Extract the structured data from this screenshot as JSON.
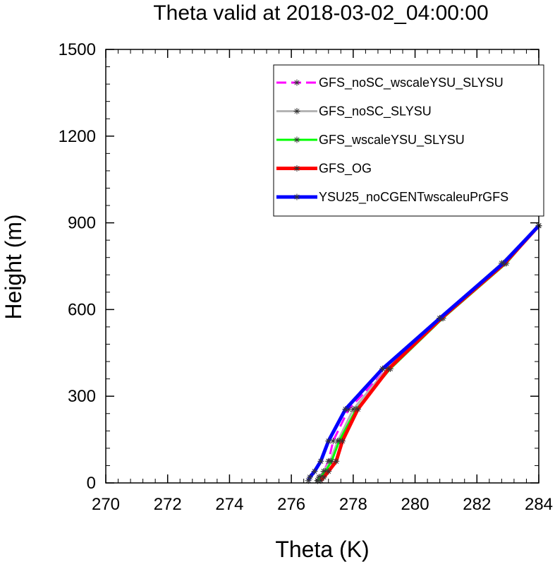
{
  "chart_data": {
    "type": "line",
    "title": "Theta valid at 2018-03-02_04:00:00",
    "xlabel": "Theta (K)",
    "ylabel": "Height (m)",
    "xlim": [
      270,
      284
    ],
    "ylim": [
      0,
      1500
    ],
    "xticks": [
      270,
      272,
      274,
      276,
      278,
      280,
      282,
      284
    ],
    "yticks": [
      0,
      300,
      600,
      900,
      1200,
      1500
    ],
    "legend_position": "top-right",
    "series": [
      {
        "name": "GFS_noSC_wscaleYSU_SLYSU",
        "color": "#ff00ff",
        "dash": "dash",
        "width": 3,
        "x": [
          276.85,
          276.9,
          277.05,
          277.2,
          277.35,
          277.85,
          279.1,
          280.9,
          282.9,
          284.0
        ],
        "y": [
          8,
          20,
          40,
          75,
          145,
          255,
          395,
          570,
          760,
          890
        ]
      },
      {
        "name": "GFS_noSC_SLYSU",
        "color": "#b4b4b4",
        "dash": "solid",
        "width": 3,
        "x": [
          276.85,
          276.9,
          277.05,
          277.25,
          277.5,
          278.0,
          279.1,
          280.8,
          282.8,
          284.0
        ],
        "y": [
          8,
          20,
          40,
          75,
          145,
          255,
          395,
          570,
          760,
          890
        ]
      },
      {
        "name": "GFS_wscaleYSU_SLYSU",
        "color": "#00ff00",
        "dash": "solid",
        "width": 3,
        "x": [
          276.85,
          276.95,
          277.1,
          277.3,
          277.55,
          278.1,
          279.2,
          280.9,
          282.95,
          284.0
        ],
        "y": [
          8,
          20,
          40,
          75,
          145,
          255,
          395,
          570,
          760,
          890
        ]
      },
      {
        "name": "GFS_OG",
        "color": "#ff0000",
        "dash": "solid",
        "width": 5,
        "x": [
          276.95,
          277.05,
          277.2,
          277.45,
          277.65,
          278.15,
          279.15,
          280.85,
          282.9,
          284.0
        ],
        "y": [
          8,
          20,
          40,
          75,
          145,
          255,
          395,
          570,
          760,
          890
        ]
      },
      {
        "name": "YSU25_noCGENTwscaleuPrGFS",
        "color": "#0000ff",
        "dash": "solid",
        "width": 5,
        "x": [
          276.55,
          276.6,
          276.75,
          276.95,
          277.2,
          277.75,
          278.95,
          280.8,
          282.85,
          284.0
        ],
        "y": [
          8,
          20,
          40,
          75,
          145,
          255,
          395,
          570,
          760,
          890
        ]
      }
    ]
  }
}
